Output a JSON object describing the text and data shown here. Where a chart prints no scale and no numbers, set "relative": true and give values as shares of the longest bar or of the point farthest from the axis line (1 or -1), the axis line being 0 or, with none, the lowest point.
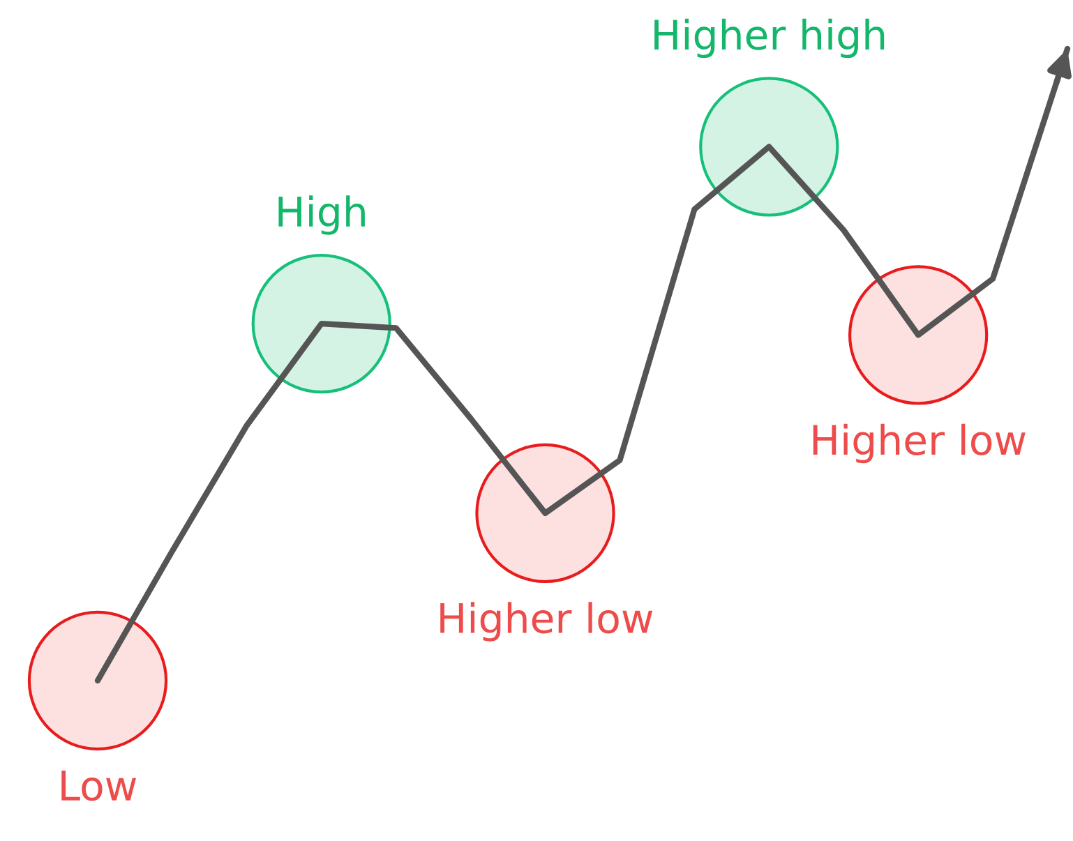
{
  "chart_data": {
    "type": "line",
    "relative": true,
    "marker": "none",
    "line_style": "solid",
    "categories": [
      null,
      null,
      null,
      null,
      null,
      null,
      null,
      null,
      null,
      null,
      null,
      null,
      null,
      null
    ],
    "series": [
      {
        "color": "#555555",
        "values": [
          0,
          0.205,
          0.404,
          0.565,
          0.558,
          0.415,
          0.265,
          0.349,
          0.746,
          0.845,
          0.713,
          0.547,
          0.636,
          1.0
        ]
      }
    ],
    "annotations": [
      "Low",
      "High",
      "Higher low",
      "Higher high",
      "Higher low"
    ]
  }
}
